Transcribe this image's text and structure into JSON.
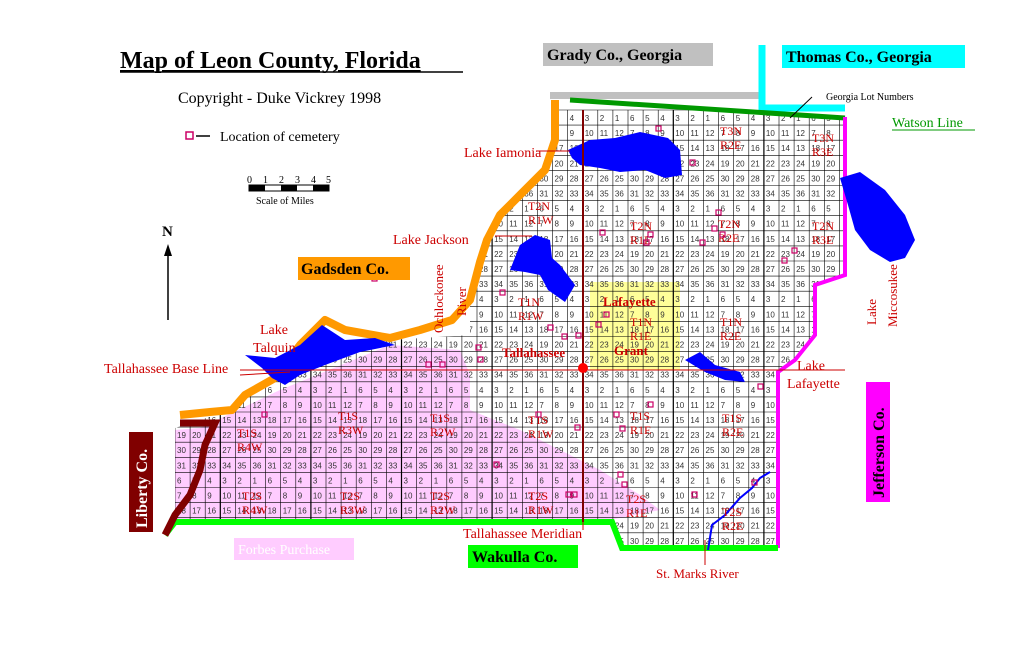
{
  "title": "Map of Leon County, Florida",
  "copyright": "Copyright - Duke Vickrey 1998",
  "legend": {
    "cemetery": "Location of cemetery"
  },
  "scale": {
    "ticks": [
      "0",
      "1",
      "2",
      "3",
      "4",
      "5"
    ],
    "label": "Scale of Miles"
  },
  "north": "N",
  "counties": {
    "grady": "Grady Co., Georgia",
    "thomas": "Thomas Co., Georgia",
    "gadsden": "Gadsden Co.",
    "liberty": "Liberty Co.",
    "wakulla": "Wakulla Co.",
    "jefferson": "Jefferson Co."
  },
  "lines": {
    "watson": "Watson Line",
    "georgia_lots": "Georgia Lot Numbers",
    "base_line": "Tallahassee Base Line",
    "meridian": "Tallahassee Meridian",
    "forbes": "Forbes Purchase"
  },
  "water": {
    "iamonia": "Lake Iamonia",
    "jackson": "Lake Jackson",
    "ochlockonee_1": "Ochlockonee",
    "ochlockonee_2": "River",
    "talquin_1": "Lake",
    "talquin_2": "Talquin",
    "miccosukee_1": "Lake",
    "miccosukee_2": "Miccosukee",
    "lafayette_1": "Lake",
    "lafayette_2": "Lafayette",
    "st_marks": "St. Marks River"
  },
  "places": {
    "tallahassee": "Tallahassee",
    "lafayette_grant": "Lafayette",
    "grant": "Grant"
  },
  "townships": [
    {
      "t": "T2N",
      "r": "R1W"
    },
    {
      "t": "T2N",
      "r": "R1E"
    },
    {
      "t": "T2N",
      "r": "R2E"
    },
    {
      "t": "T2N",
      "r": "R3E"
    },
    {
      "t": "T3N",
      "r": "R2E"
    },
    {
      "t": "T3N",
      "r": "R3E"
    },
    {
      "t": "T1N",
      "r": "R1W"
    },
    {
      "t": "T1N",
      "r": "R1E"
    },
    {
      "t": "T1N",
      "r": "R2E"
    },
    {
      "t": "T1S",
      "r": "R4W"
    },
    {
      "t": "T1S",
      "r": "R3W"
    },
    {
      "t": "T1S",
      "r": "R2W"
    },
    {
      "t": "T1S",
      "r": "R1W"
    },
    {
      "t": "T1S",
      "r": "R1E"
    },
    {
      "t": "T1S",
      "r": "R2E"
    },
    {
      "t": "T2S",
      "r": "R4W"
    },
    {
      "t": "T2S",
      "r": "R3W"
    },
    {
      "t": "T2S",
      "r": "R2W"
    },
    {
      "t": "T2S",
      "r": "R1W"
    },
    {
      "t": "T2S",
      "r": "R1E"
    },
    {
      "t": "T2S",
      "r": "R2E"
    }
  ],
  "colors": {
    "frame": "#cc0000",
    "grid": "#000000",
    "section_numbers": "#cc0000",
    "water": "#0000ff",
    "gadsden": "#ff9900",
    "grady": "#c0c0c0",
    "thomas": "#00ffff",
    "watson": "#009900",
    "wakulla": "#00ff00",
    "jefferson": "#ff00ff",
    "liberty": "#800000",
    "forbes": "#ffccff",
    "grant": "#ffff99",
    "cemetery": "#cc0066"
  }
}
